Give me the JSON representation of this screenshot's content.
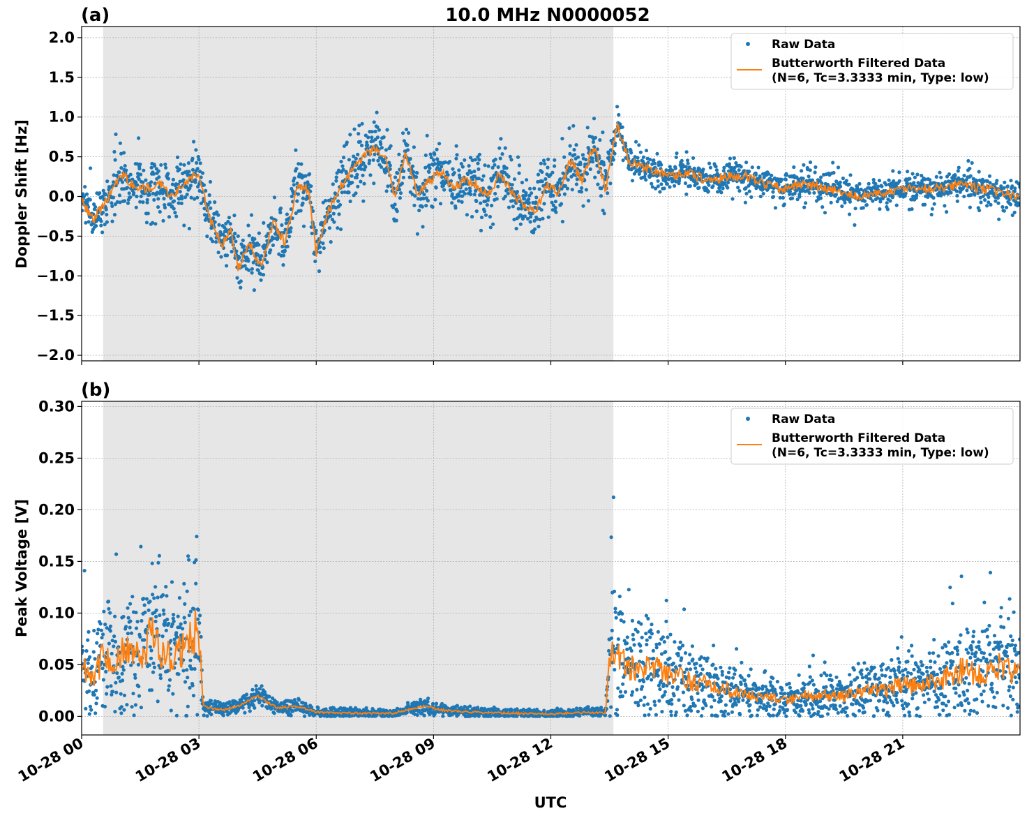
{
  "title": "10.0 MHz N0000052",
  "colors": {
    "raw": "#1f77b4",
    "filtered": "#ff7f0e",
    "shade": "#e6e6e6",
    "grid": "#b0b0b0"
  },
  "chart_data": [
    {
      "type": "scatter",
      "panel_label": "(a)",
      "ylabel": "Doppler Shift [Hz]",
      "xlabel": "",
      "ylim": [
        -2.07,
        2.14
      ],
      "yticks": [
        {
          "value": 2.0,
          "label": "2.0"
        },
        {
          "value": 1.5,
          "label": "1.5"
        },
        {
          "value": 1.0,
          "label": "1.0"
        },
        {
          "value": 0.5,
          "label": "0.5"
        },
        {
          "value": 0.0,
          "label": "0.0"
        },
        {
          "value": -0.5,
          "label": "−0.5"
        },
        {
          "value": -1.0,
          "label": "−1.0"
        },
        {
          "value": -1.5,
          "label": "−1.5"
        },
        {
          "value": -2.0,
          "label": "−2.0"
        }
      ],
      "xlim_hours": [
        0,
        24
      ],
      "xticks": [
        0,
        3,
        6,
        9,
        12,
        15,
        18,
        21
      ],
      "grid": true,
      "shaded_interval_hours": [
        0.55,
        13.6
      ],
      "legend": {
        "placement": "upper right",
        "entries": [
          "Raw Data",
          "Butterworth Filtered Data",
          "(N=6, Tc=3.3333 min, Type: low)"
        ]
      },
      "series": [
        {
          "name": "Raw Data",
          "style": "dots",
          "color": "raw",
          "noise_level": 0.3
        },
        {
          "name": "Butterworth Filtered Data (N=6, Tc=3.3333 min, Type: low)",
          "style": "line",
          "color": "filtered",
          "x_hours": [
            0,
            0.3,
            0.7,
            1.0,
            1.3,
            1.6,
            2.0,
            2.3,
            2.6,
            3.0,
            3.3,
            3.6,
            3.8,
            4.0,
            4.3,
            4.6,
            4.9,
            5.2,
            5.5,
            5.8,
            6.0,
            6.3,
            6.6,
            6.9,
            7.2,
            7.5,
            7.8,
            8.0,
            8.3,
            8.6,
            8.9,
            9.2,
            9.5,
            9.8,
            10.1,
            10.4,
            10.7,
            11.0,
            11.3,
            11.6,
            11.9,
            12.2,
            12.5,
            12.8,
            13.1,
            13.4,
            13.7,
            14.0,
            14.5,
            15.0,
            15.5,
            16.0,
            16.5,
            17.0,
            17.5,
            18.0,
            18.5,
            19.0,
            19.5,
            20.0,
            20.5,
            21.0,
            21.5,
            22.0,
            22.5,
            23.0,
            23.5,
            24.0
          ],
          "values": [
            -0.05,
            -0.3,
            0.0,
            0.3,
            0.15,
            0.1,
            0.15,
            0.0,
            0.15,
            0.3,
            -0.3,
            -0.6,
            -0.4,
            -0.9,
            -0.6,
            -0.9,
            -0.3,
            -0.6,
            0.1,
            0.1,
            -0.7,
            -0.2,
            0.1,
            0.3,
            0.5,
            0.6,
            0.45,
            0.0,
            0.55,
            0.0,
            0.2,
            0.3,
            0.1,
            0.2,
            0.15,
            0.0,
            0.3,
            0.05,
            -0.1,
            -0.2,
            0.15,
            0.05,
            0.45,
            0.2,
            0.65,
            0.1,
            0.9,
            0.45,
            0.35,
            0.25,
            0.3,
            0.2,
            0.25,
            0.25,
            0.15,
            0.1,
            0.15,
            0.1,
            0.05,
            0.0,
            0.05,
            0.1,
            0.1,
            0.1,
            0.15,
            0.1,
            0.05,
            0.0
          ]
        }
      ]
    },
    {
      "type": "scatter",
      "panel_label": "(b)",
      "ylabel": "Peak Voltage [V]",
      "xlabel": "UTC",
      "ylim": [
        -0.018,
        0.305
      ],
      "yticks": [
        {
          "value": 0.3,
          "label": "0.30"
        },
        {
          "value": 0.25,
          "label": "0.25"
        },
        {
          "value": 0.2,
          "label": "0.20"
        },
        {
          "value": 0.15,
          "label": "0.15"
        },
        {
          "value": 0.1,
          "label": "0.10"
        },
        {
          "value": 0.05,
          "label": "0.05"
        },
        {
          "value": 0.0,
          "label": "0.00"
        }
      ],
      "xlim_hours": [
        0,
        24
      ],
      "xticks": [
        0,
        3,
        6,
        9,
        12,
        15,
        18,
        21
      ],
      "xtick_labels": [
        "10-28 00",
        "10-28 03",
        "10-28 06",
        "10-28 09",
        "10-28 12",
        "10-28 15",
        "10-28 18",
        "10-28 21"
      ],
      "grid": true,
      "shaded_interval_hours": [
        0.55,
        13.6
      ],
      "legend": {
        "placement": "upper right",
        "entries": [
          "Raw Data",
          "Butterworth Filtered Data",
          "(N=6, Tc=3.3333 min, Type: low)"
        ]
      },
      "series": [
        {
          "name": "Raw Data",
          "style": "dots",
          "color": "raw",
          "noise_level": 0.4
        },
        {
          "name": "Butterworth Filtered Data (N=6, Tc=3.3333 min, Type: low)",
          "style": "line",
          "color": "filtered",
          "x_hours": [
            0,
            0.3,
            0.6,
            0.9,
            1.2,
            1.5,
            1.8,
            2.1,
            2.4,
            2.7,
            3.0,
            3.1,
            3.3,
            3.6,
            4.0,
            4.5,
            5.0,
            5.5,
            6.0,
            7.0,
            8.0,
            8.5,
            8.8,
            9.2,
            10.0,
            11.0,
            12.0,
            12.5,
            13.0,
            13.4,
            13.5,
            13.6,
            14.0,
            14.5,
            15.0,
            15.5,
            16.0,
            16.5,
            17.0,
            17.5,
            18.0,
            18.5,
            19.0,
            19.5,
            20.0,
            20.5,
            21.0,
            21.5,
            22.0,
            22.5,
            23.0,
            23.5,
            24.0
          ],
          "values": [
            0.05,
            0.04,
            0.06,
            0.05,
            0.07,
            0.05,
            0.08,
            0.06,
            0.06,
            0.07,
            0.09,
            0.01,
            0.008,
            0.006,
            0.01,
            0.02,
            0.008,
            0.01,
            0.004,
            0.003,
            0.003,
            0.008,
            0.01,
            0.006,
            0.004,
            0.003,
            0.002,
            0.003,
            0.004,
            0.003,
            0.06,
            0.07,
            0.045,
            0.05,
            0.04,
            0.035,
            0.03,
            0.025,
            0.02,
            0.02,
            0.015,
            0.02,
            0.02,
            0.02,
            0.025,
            0.025,
            0.03,
            0.03,
            0.035,
            0.045,
            0.04,
            0.05,
            0.04
          ]
        }
      ]
    }
  ]
}
